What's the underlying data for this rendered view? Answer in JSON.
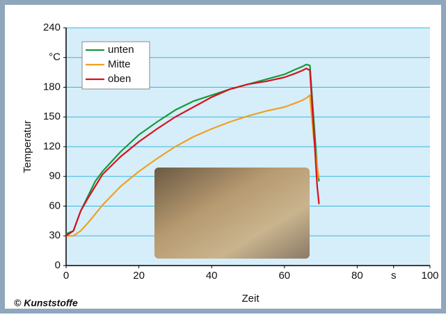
{
  "chart_data": {
    "type": "line",
    "xlabel": "Zeit",
    "ylabel": "Temperatur",
    "credit": "© Kunststoffe",
    "x": [
      0,
      2,
      4,
      6,
      8,
      10,
      15,
      20,
      25,
      30,
      35,
      40,
      45,
      50,
      55,
      60,
      63,
      65,
      66,
      67,
      68,
      69,
      69.5
    ],
    "series": [
      {
        "name": "unten",
        "color": "#17983a",
        "values": [
          32,
          35,
          55,
          70,
          85,
          95,
          115,
          132,
          145,
          157,
          166,
          172,
          178,
          183,
          188,
          193,
          198,
          201,
          203,
          202,
          150,
          100,
          85
        ]
      },
      {
        "name": "Mitte",
        "color": "#f0a020",
        "values": [
          30,
          30,
          35,
          43,
          52,
          61,
          80,
          95,
          108,
          120,
          130,
          138,
          145,
          151,
          156,
          160,
          164,
          167,
          169,
          172,
          130,
          100,
          88
        ]
      },
      {
        "name": "oben",
        "color": "#d8101e",
        "values": [
          30,
          35,
          55,
          68,
          80,
          92,
          110,
          125,
          138,
          150,
          160,
          170,
          178,
          183,
          186,
          190,
          194,
          197,
          199,
          197,
          140,
          80,
          62
        ]
      }
    ],
    "xlim": [
      0,
      100
    ],
    "xticks": [
      0,
      20,
      40,
      60,
      80,
      {
        "value": 90,
        "label": "s"
      },
      100
    ],
    "ylim": [
      0,
      240
    ],
    "yticks": [
      0,
      30,
      60,
      90,
      120,
      150,
      180,
      {
        "value": 210,
        "label": "°C"
      },
      240
    ],
    "grid": true,
    "legend": "upper left"
  }
}
